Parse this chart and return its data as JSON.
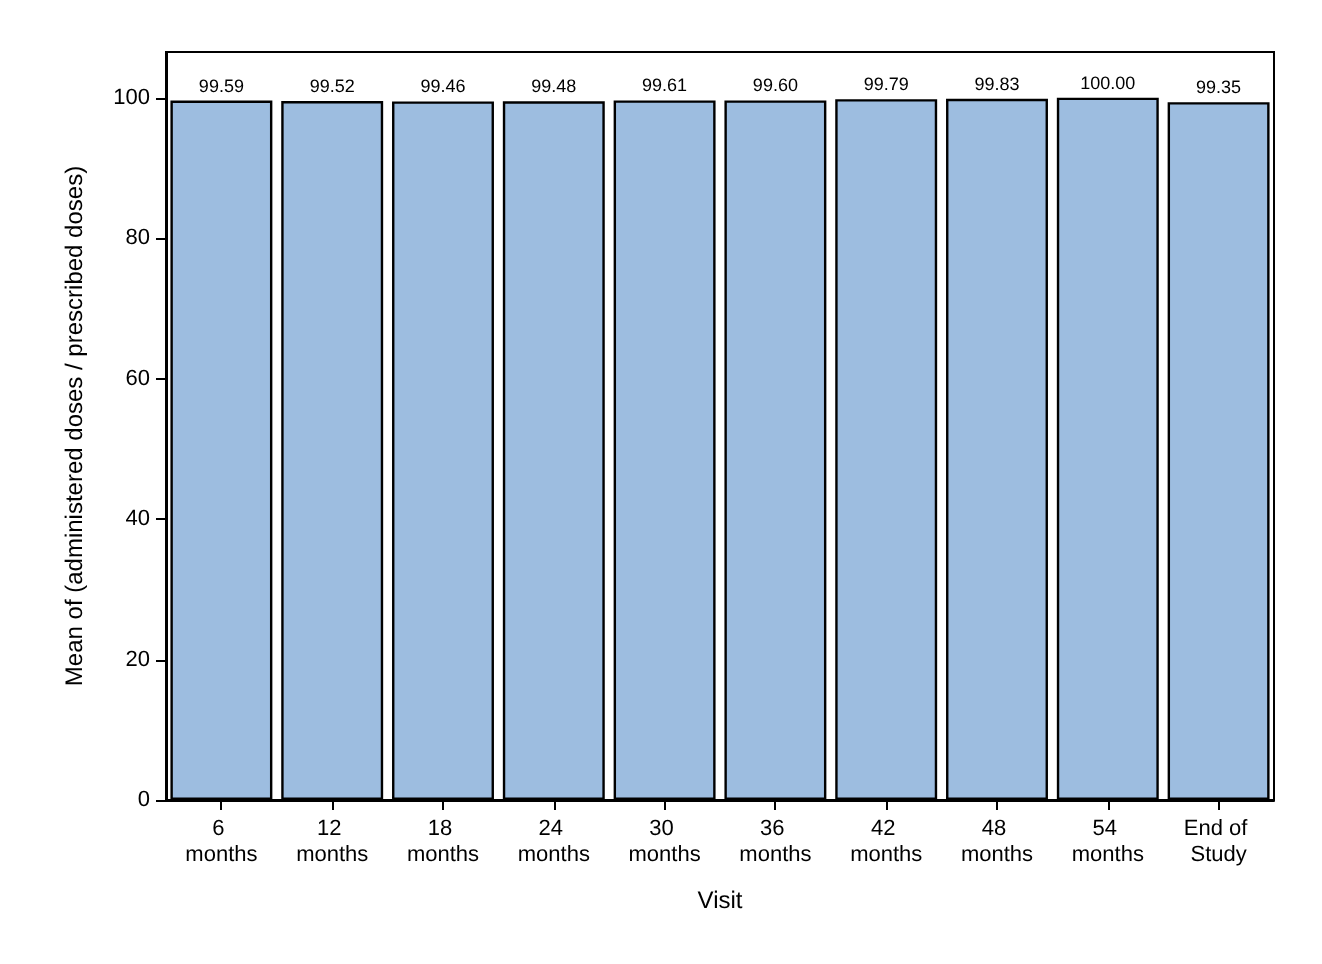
{
  "chart_data": {
    "type": "bar",
    "xlabel": "Visit",
    "ylabel": "Mean of (administered doses / prescribed doses)",
    "categories": [
      "6 months",
      "12 months",
      "18 months",
      "24 months",
      "30 months",
      "36 months",
      "42 months",
      "48 months",
      "54 months",
      "End of Study"
    ],
    "values": [
      99.59,
      99.52,
      99.46,
      99.48,
      99.61,
      99.6,
      99.79,
      99.83,
      100.0,
      99.35
    ],
    "value_labels": [
      "99.59",
      "99.52",
      "99.46",
      "99.48",
      "99.61",
      "99.60",
      "99.79",
      "99.83",
      "100.00",
      "99.35"
    ],
    "color": "#9dbde0",
    "ylim": [
      0,
      106.5
    ],
    "yticks": [
      0,
      20,
      40,
      60,
      80,
      100
    ],
    "grid": false
  }
}
